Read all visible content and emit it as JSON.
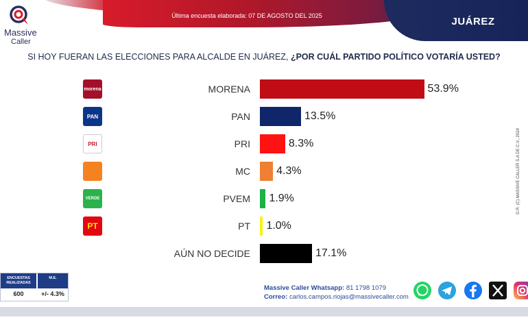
{
  "header": {
    "survey_date": "Última encuesta elaborada: 07 DE AGOSTO DEL 2025",
    "region": "JUÁREZ",
    "brand_line1": "Massive",
    "brand_line2": "Caller"
  },
  "question": {
    "prefix": "SI HOY FUERAN LAS ELECCIONES PARA ALCALDE EN JUÁREZ, ",
    "bold": "¿POR CUÁL PARTIDO POLÍTICO VOTARÍA USTED?"
  },
  "chart_data": {
    "type": "bar",
    "orientation": "horizontal",
    "categories": [
      "MORENA",
      "PAN",
      "PRI",
      "MC",
      "PVEM",
      "PT",
      "AÚN NO DECIDE"
    ],
    "values": [
      53.9,
      13.5,
      8.3,
      4.3,
      1.9,
      1.0,
      17.1
    ],
    "value_labels": [
      "53.9%",
      "13.5%",
      "8.3%",
      "4.3%",
      "1.9%",
      "1.0%",
      "17.1%"
    ],
    "colors": [
      "#c00d15",
      "#10266b",
      "#ff1212",
      "#ef7f32",
      "#1db245",
      "#f7f411",
      "#000000"
    ],
    "icons": [
      "morena-logo-icon",
      "pan-logo-icon",
      "pri-logo-icon",
      "mc-logo-icon",
      "pvem-logo-icon",
      "pt-logo-icon",
      ""
    ],
    "icon_text": [
      "morena",
      "PAN",
      "PRI",
      "",
      "VERDE",
      "PT",
      ""
    ],
    "xlim": [
      0,
      54
    ],
    "grid": false,
    "legend": "none"
  },
  "credit": "D.R. (C) MASSIVE CALLER S.A DE C.V., 2024",
  "sample": {
    "h1": "ENCUESTAS REALIZADAS",
    "h2": "M.E.",
    "v1": "600",
    "v2": "+/- 4.3%"
  },
  "contact": {
    "whatsapp_label": "Massive Caller Whatsapp:",
    "whatsapp_value": " 81 1798 1079",
    "email_label": "Correo:",
    "email_value": " carlos.campos.riojas@massivecaller.com"
  },
  "colors": {
    "brand_red": "#c8102e",
    "brand_navy": "#1d2b5f",
    "text_navy": "#1f2a4a",
    "contact_blue": "#2d4b9c"
  },
  "social": [
    "whatsapp-icon",
    "telegram-icon",
    "facebook-icon",
    "x-icon",
    "instagram-icon"
  ]
}
